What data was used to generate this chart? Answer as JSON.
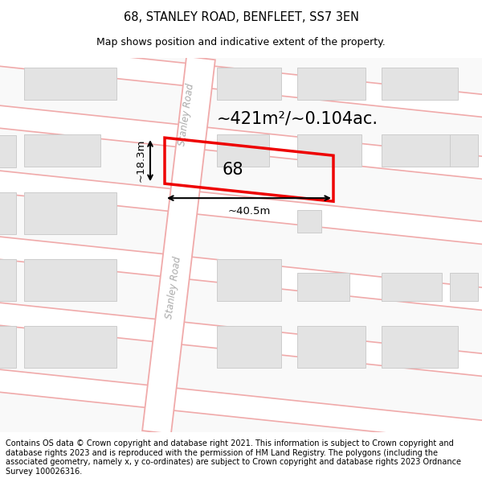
{
  "title": "68, STANLEY ROAD, BENFLEET, SS7 3EN",
  "subtitle": "Map shows position and indicative extent of the property.",
  "area_text": "~421m²/~0.104ac.",
  "property_number": "68",
  "dim_width": "~40.5m",
  "dim_height": "~18.3m",
  "road_label": "Stanley Road",
  "footer": "Contains OS data © Crown copyright and database right 2021. This information is subject to Crown copyright and database rights 2023 and is reproduced with the permission of HM Land Registry. The polygons (including the associated geometry, namely x, y co-ordinates) are subject to Crown copyright and database rights 2023 Ordnance Survey 100026316.",
  "bg_color": "#ffffff",
  "map_bg": "#f9f9f9",
  "road_fill": "#ffffff",
  "road_line_color": "#f0aaaa",
  "building_fill": "#e3e3e3",
  "building_border": "#cccccc",
  "property_border": "#ee0000",
  "title_fontsize": 10.5,
  "subtitle_fontsize": 9,
  "area_fontsize": 15,
  "prop_label_fontsize": 15,
  "dim_fontsize": 9.5,
  "road_label_fontsize": 8.5,
  "footer_fontsize": 7.0
}
